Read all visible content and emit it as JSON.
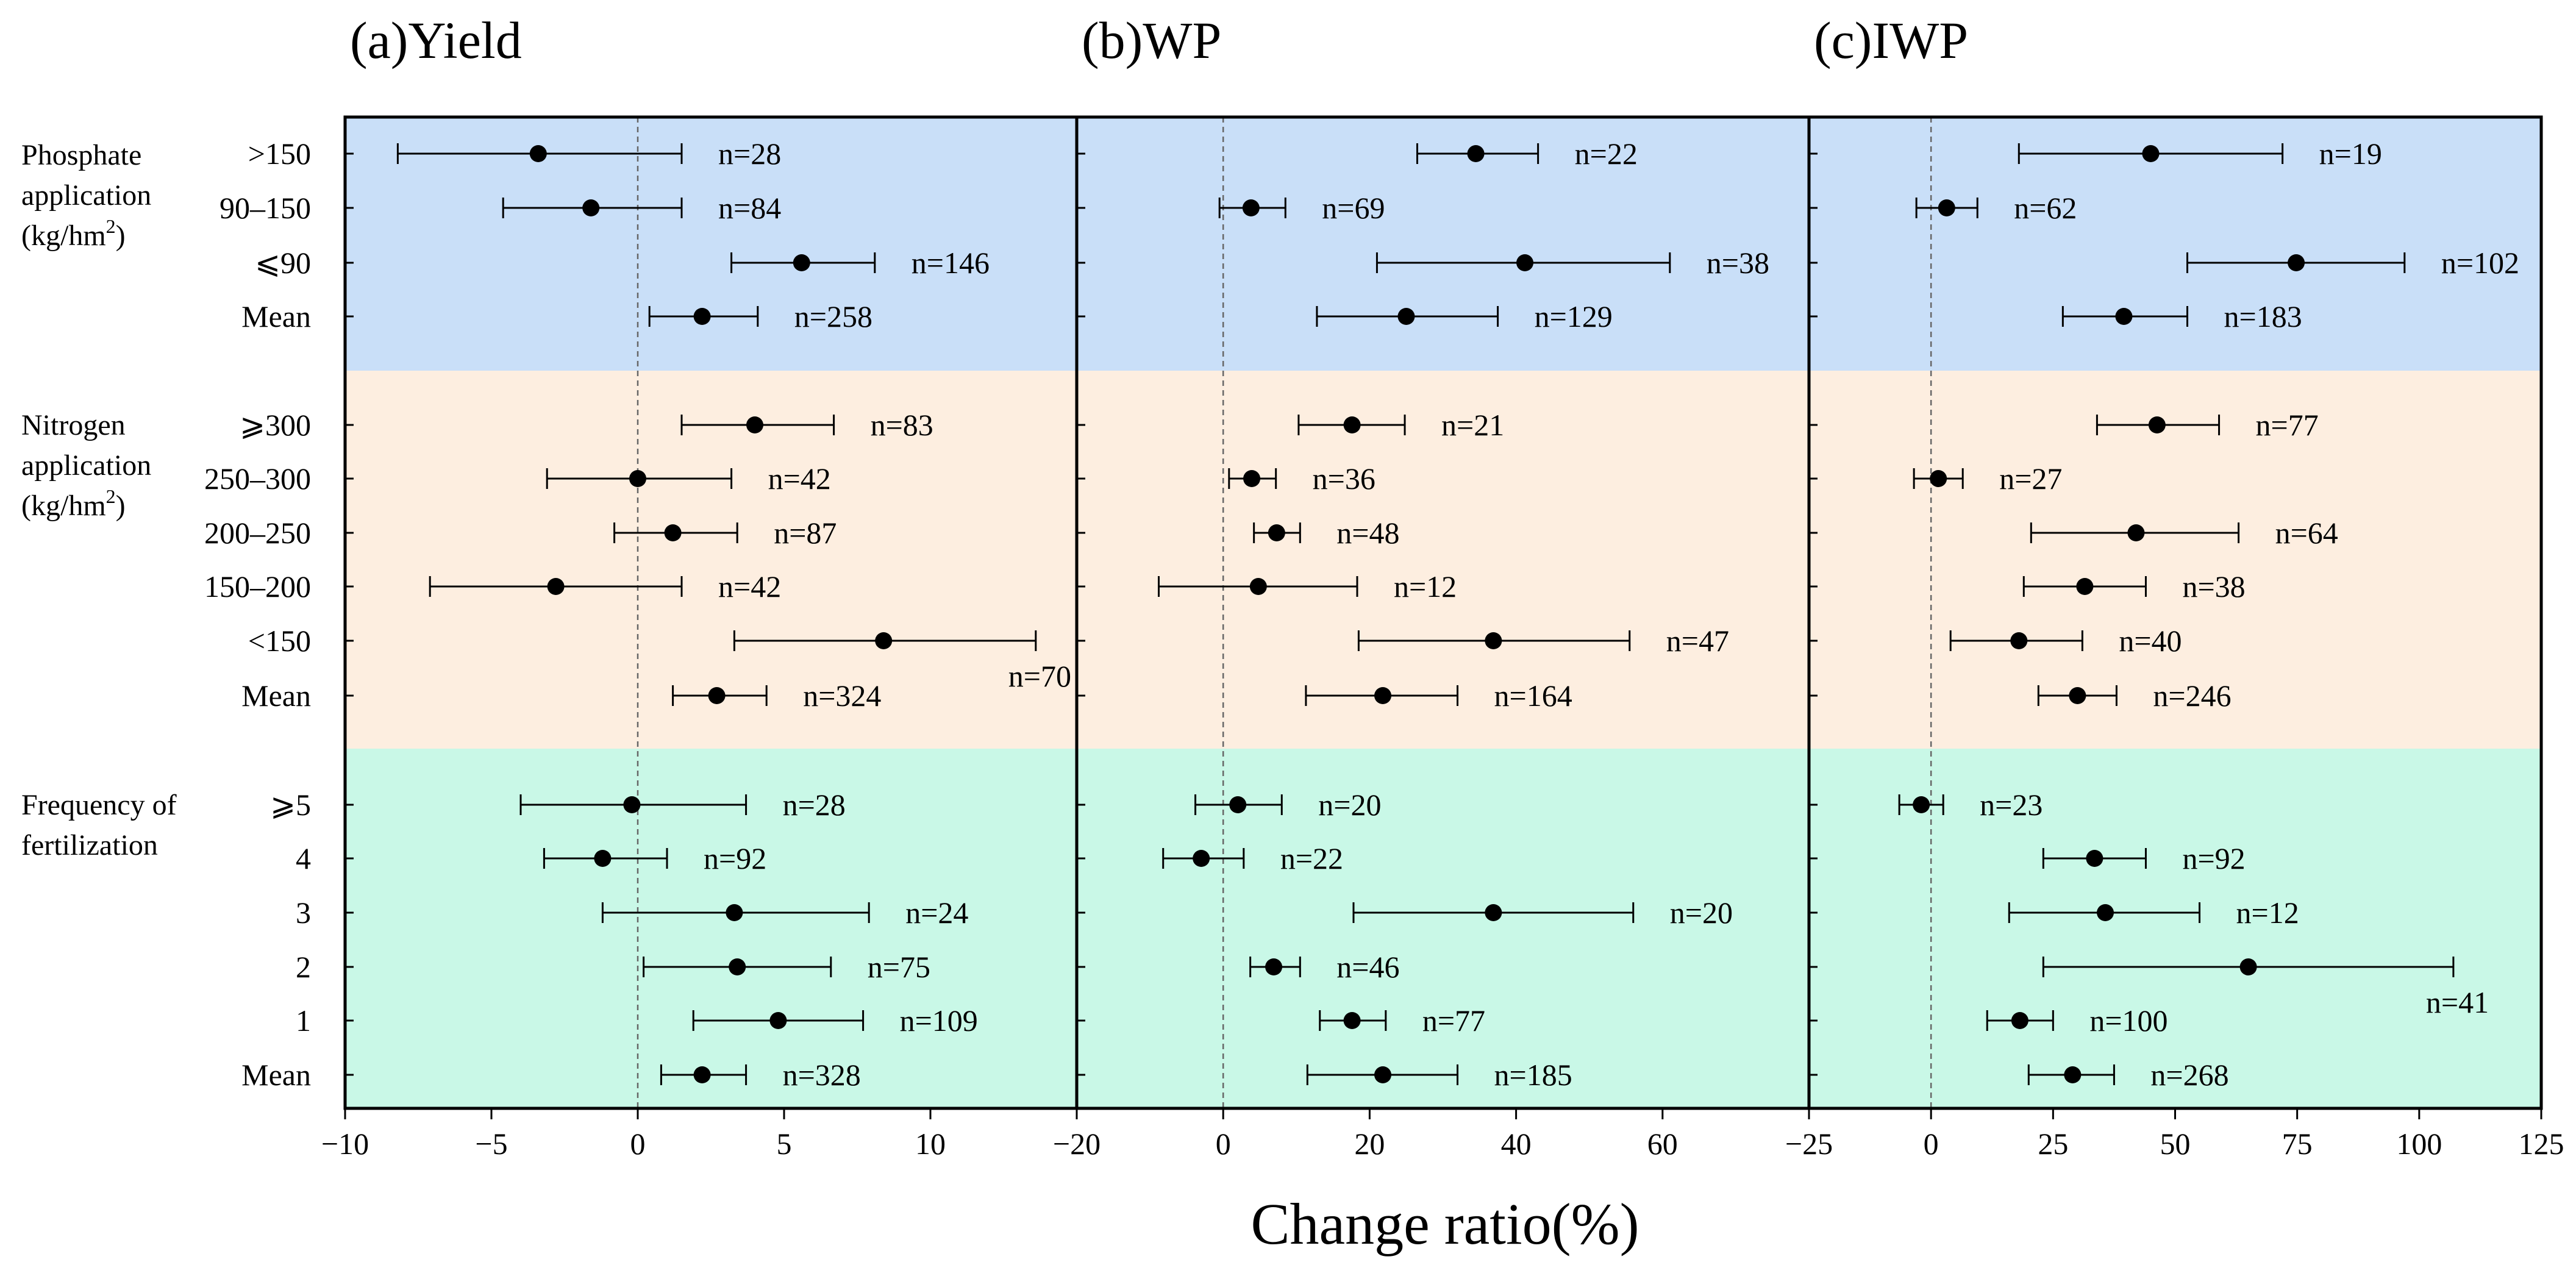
{
  "chart_data": {
    "type": "forest",
    "xlabel": "Change ratio(%)",
    "colors": {
      "phosphate": "#c9dff8",
      "nitrogen": "#fdeee0",
      "frequency": "#c9f8e7"
    },
    "groups": [
      {
        "key": "phosphate",
        "label_lines": [
          "Phosphate",
          "application"
        ],
        "unit": "(kg/hm",
        "unit_sup": "2",
        "unit_close": ")",
        "rows": [
          ">150",
          "90–150",
          "⩽90",
          "Mean"
        ]
      },
      {
        "key": "nitrogen",
        "label_lines": [
          "Nitrogen",
          "application"
        ],
        "unit": "(kg/hm",
        "unit_sup": "2",
        "unit_close": ")",
        "rows": [
          "⩾300",
          "250–300",
          "200–250",
          "150–200",
          "<150",
          "Mean"
        ]
      },
      {
        "key": "frequency",
        "label_lines": [
          "Frequency of",
          "fertilization"
        ],
        "unit": "",
        "unit_sup": "",
        "unit_close": "",
        "rows": [
          "⩾5",
          "4",
          "3",
          "2",
          "1",
          "Mean"
        ]
      }
    ],
    "panels": [
      {
        "title": "(a)Yield",
        "xlim": [
          -10,
          15
        ],
        "ticks": [
          -10,
          -5,
          0,
          5,
          10
        ],
        "tick_labels": [
          "−10",
          "−5",
          "0",
          "5",
          "10"
        ],
        "points": [
          {
            "mean": -3.4,
            "lo": -8.2,
            "hi": 1.5,
            "n": "n=28"
          },
          {
            "mean": -1.6,
            "lo": -4.6,
            "hi": 1.5,
            "n": "n=84"
          },
          {
            "mean": 5.6,
            "lo": 3.2,
            "hi": 8.1,
            "n": "n=146"
          },
          {
            "mean": 2.2,
            "lo": 0.4,
            "hi": 4.1,
            "n": "n=258"
          },
          {
            "mean": 4.0,
            "lo": 1.5,
            "hi": 6.7,
            "n": "n=83"
          },
          {
            "mean": 0.0,
            "lo": -3.1,
            "hi": 3.2,
            "n": "n=42"
          },
          {
            "mean": 1.2,
            "lo": -0.8,
            "hi": 3.4,
            "n": "n=87"
          },
          {
            "mean": -2.8,
            "lo": -7.1,
            "hi": 1.5,
            "n": "n=42"
          },
          {
            "mean": 8.4,
            "lo": 3.3,
            "hi": 13.6,
            "n": "n=70"
          },
          {
            "mean": 2.7,
            "lo": 1.2,
            "hi": 4.4,
            "n": "n=324"
          },
          {
            "mean": -0.2,
            "lo": -4.0,
            "hi": 3.7,
            "n": "n=28"
          },
          {
            "mean": -1.2,
            "lo": -3.2,
            "hi": 1.0,
            "n": "n=92"
          },
          {
            "mean": 3.3,
            "lo": -1.2,
            "hi": 7.9,
            "n": "n=24"
          },
          {
            "mean": 3.4,
            "lo": 0.2,
            "hi": 6.6,
            "n": "n=75"
          },
          {
            "mean": 4.8,
            "lo": 1.9,
            "hi": 7.7,
            "n": "n=109"
          },
          {
            "mean": 2.2,
            "lo": 0.8,
            "hi": 3.7,
            "n": "n=328"
          }
        ]
      },
      {
        "title": "(b)WP",
        "xlim": [
          -20,
          80
        ],
        "ticks": [
          -20,
          0,
          20,
          40,
          60
        ],
        "tick_labels": [
          "−20",
          "0",
          "20",
          "40",
          "60"
        ],
        "points": [
          {
            "mean": 34.5,
            "lo": 26.5,
            "hi": 43.0,
            "n": "n=22"
          },
          {
            "mean": 3.8,
            "lo": -0.5,
            "hi": 8.5,
            "n": "n=69"
          },
          {
            "mean": 41.2,
            "lo": 21.0,
            "hi": 61.0,
            "n": "n=38"
          },
          {
            "mean": 25.0,
            "lo": 12.8,
            "hi": 37.5,
            "n": "n=129"
          },
          {
            "mean": 17.6,
            "lo": 10.3,
            "hi": 24.8,
            "n": "n=21"
          },
          {
            "mean": 3.9,
            "lo": 0.8,
            "hi": 7.2,
            "n": "n=36"
          },
          {
            "mean": 7.3,
            "lo": 4.2,
            "hi": 10.5,
            "n": "n=48"
          },
          {
            "mean": 4.8,
            "lo": -8.8,
            "hi": 18.3,
            "n": "n=12"
          },
          {
            "mean": 36.9,
            "lo": 18.5,
            "hi": 55.5,
            "n": "n=47"
          },
          {
            "mean": 21.8,
            "lo": 11.3,
            "hi": 32.0,
            "n": "n=164"
          },
          {
            "mean": 2.0,
            "lo": -3.8,
            "hi": 8.0,
            "n": "n=20"
          },
          {
            "mean": -3.0,
            "lo": -8.2,
            "hi": 2.8,
            "n": "n=22"
          },
          {
            "mean": 36.9,
            "lo": 17.8,
            "hi": 56.0,
            "n": "n=20"
          },
          {
            "mean": 6.9,
            "lo": 3.7,
            "hi": 10.5,
            "n": "n=46"
          },
          {
            "mean": 17.6,
            "lo": 13.2,
            "hi": 22.2,
            "n": "n=77"
          },
          {
            "mean": 21.8,
            "lo": 11.5,
            "hi": 32.0,
            "n": "n=185"
          }
        ]
      },
      {
        "title": "(c)IWP",
        "xlim": [
          -25,
          125
        ],
        "ticks": [
          -25,
          0,
          25,
          50,
          75,
          100,
          125
        ],
        "tick_labels": [
          "−25",
          "0",
          "25",
          "50",
          "75",
          "100",
          "125"
        ],
        "points": [
          {
            "mean": 45.0,
            "lo": 18.0,
            "hi": 72.0,
            "n": "n=19"
          },
          {
            "mean": 3.2,
            "lo": -3.0,
            "hi": 9.5,
            "n": "n=62"
          },
          {
            "mean": 74.8,
            "lo": 52.5,
            "hi": 97.0,
            "n": "n=102"
          },
          {
            "mean": 39.5,
            "lo": 27.0,
            "hi": 52.5,
            "n": "n=183"
          },
          {
            "mean": 46.3,
            "lo": 34.0,
            "hi": 59.0,
            "n": "n=77"
          },
          {
            "mean": 1.5,
            "lo": -3.5,
            "hi": 6.5,
            "n": "n=27"
          },
          {
            "mean": 42.0,
            "lo": 20.5,
            "hi": 63.0,
            "n": "n=64"
          },
          {
            "mean": 31.5,
            "lo": 19.0,
            "hi": 44.0,
            "n": "n=38"
          },
          {
            "mean": 18.0,
            "lo": 4.0,
            "hi": 31.0,
            "n": "n=40"
          },
          {
            "mean": 30.0,
            "lo": 22.0,
            "hi": 38.0,
            "n": "n=246"
          },
          {
            "mean": -2.0,
            "lo": -6.5,
            "hi": 2.5,
            "n": "n=23"
          },
          {
            "mean": 33.5,
            "lo": 23.0,
            "hi": 44.0,
            "n": "n=92"
          },
          {
            "mean": 35.7,
            "lo": 16.0,
            "hi": 55.0,
            "n": "n=12"
          },
          {
            "mean": 65.0,
            "lo": 23.0,
            "hi": 107.0,
            "n": "n=41"
          },
          {
            "mean": 18.2,
            "lo": 11.5,
            "hi": 25.0,
            "n": "n=100"
          },
          {
            "mean": 29.0,
            "lo": 20.0,
            "hi": 37.5,
            "n": "n=268"
          }
        ]
      }
    ]
  }
}
